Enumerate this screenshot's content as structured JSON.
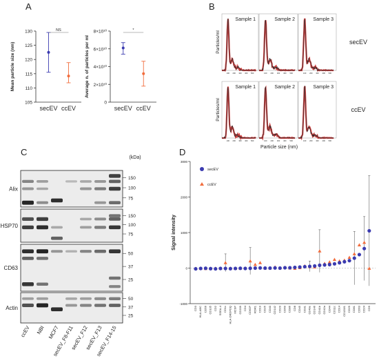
{
  "panels": {
    "a": "A",
    "b": "B",
    "c": "C",
    "d": "D"
  },
  "colors": {
    "sec": "#3b3bb0",
    "cc": "#f26d3d",
    "red": "#c81e1e",
    "dark": "#2b2b2b"
  },
  "chart_data": [
    {
      "type": "scatter",
      "panel": "A",
      "ylabel": "Mean particle size (nm)",
      "categories": [
        "secEV",
        "ccEV"
      ],
      "ylim": [
        105,
        130
      ],
      "yticks": [
        "105",
        "110",
        "115",
        "120",
        "125",
        "130"
      ],
      "significance": "NS",
      "series": [
        {
          "category": "secEV",
          "value": 122.5,
          "err_low": 115.5,
          "err_high": 129.5
        },
        {
          "category": "ccEV",
          "value": 114.2,
          "err_low": 111.8,
          "err_high": 118.9
        }
      ]
    },
    {
      "type": "scatter",
      "panel": "A",
      "ylabel": "Average n. of particles per ml",
      "categories": [
        "secEV",
        "ccEV"
      ],
      "ylim": [
        0,
        80000000000.0
      ],
      "yticks": [
        "0",
        "2×10¹⁰",
        "4×10¹⁰",
        "6×10¹⁰",
        "8×10¹⁰"
      ],
      "significance": "*",
      "series": [
        {
          "category": "secEV",
          "value": 61000000000.0,
          "err_low": 54000000000.0,
          "err_high": 67000000000.0
        },
        {
          "category": "ccEV",
          "value": 32000000000.0,
          "err_low": 18000000000.0,
          "err_high": 46000000000.0
        }
      ]
    },
    {
      "type": "line",
      "panel": "B",
      "xlabel": "Particle size (nm)",
      "ylabel": "Particles/ml",
      "row_labels": [
        "secEV",
        "ccEV"
      ],
      "sample_labels": [
        "Sample 1",
        "Sample 2",
        "Sample 3"
      ],
      "x_ticks": [
        "100",
        "200",
        "300",
        "400",
        "500"
      ],
      "xlim": [
        0,
        600
      ],
      "peak_nm": 100
    },
    {
      "type": "table",
      "panel": "C",
      "unit_label": "(kDa)",
      "marker_rows": [
        {
          "label": "Alix",
          "mw": [
            "150",
            "100",
            "75"
          ]
        },
        {
          "label": "HSP70",
          "mw": [
            "150",
            "100",
            "75"
          ]
        },
        {
          "label": "CD63",
          "mw": [
            "50",
            "37",
            "25"
          ]
        },
        {
          "label": "Actin",
          "mw": [
            "50",
            "37",
            "25"
          ]
        }
      ],
      "lanes": [
        "ccEV",
        "NBI",
        "MCF7",
        "secEV_F8-F11",
        "secEV_F12",
        "secEV_F13",
        "secEV_F14-15"
      ]
    },
    {
      "type": "scatter",
      "panel": "D",
      "ylabel": "Signal intensity",
      "ylim": [
        -1000,
        3000
      ],
      "yticks": [
        "-1000",
        "0",
        "1000",
        "2000",
        "3000"
      ],
      "legend": [
        "secEV",
        "ccEV"
      ],
      "categories": [
        "CD3",
        "HLA-ABC",
        "CD56",
        "CD105",
        "CD2",
        "SSEA-4",
        "CD1c",
        "HLA-DRDPDQ",
        "MCSP",
        "CD209",
        "CD4",
        "CD62P",
        "ROR1",
        "CD19",
        "CD25",
        "CD40",
        "CD142",
        "CD20",
        "CD69",
        "CD86",
        "CD8",
        "CD45",
        "CD31",
        "CD49e",
        "CD146",
        "CD41b",
        "CD42a",
        "CD44",
        "CD11c",
        "CD14",
        "CD133/1",
        "CD29",
        "CD81",
        "CD63",
        "CD24",
        "CD9"
      ],
      "highlighted": [
        "CD81",
        "CD63",
        "CD9"
      ],
      "sec_values": [
        -20,
        -10,
        -5,
        -15,
        -20,
        -10,
        -10,
        -15,
        -10,
        -5,
        -10,
        -5,
        0,
        5,
        0,
        0,
        5,
        0,
        10,
        10,
        20,
        30,
        40,
        50,
        60,
        80,
        90,
        100,
        120,
        150,
        180,
        210,
        280,
        380,
        550,
        1050
      ],
      "cc_values": [
        -10,
        -10,
        -15,
        -10,
        -5,
        -10,
        150,
        -5,
        -10,
        -5,
        0,
        200,
        100,
        150,
        0,
        0,
        30,
        5,
        20,
        0,
        -10,
        10,
        60,
        40,
        30,
        480,
        130,
        170,
        240,
        200,
        220,
        300,
        400,
        650,
        720,
        -10
      ],
      "sec_err": [
        0,
        30,
        0,
        0,
        0,
        0,
        0,
        0,
        0,
        0,
        0,
        0,
        0,
        0,
        0,
        0,
        0,
        0,
        0,
        0,
        0,
        0,
        0,
        150,
        0,
        0,
        0,
        0,
        0,
        0,
        0,
        0,
        750,
        0,
        900,
        1550
      ],
      "cc_err": [
        0,
        0,
        0,
        0,
        0,
        0,
        250,
        0,
        0,
        0,
        0,
        380,
        0,
        0,
        0,
        0,
        0,
        0,
        0,
        0,
        0,
        0,
        0,
        0,
        0,
        600,
        0,
        0,
        0,
        0,
        0,
        0,
        0,
        0,
        0,
        0
      ]
    }
  ]
}
